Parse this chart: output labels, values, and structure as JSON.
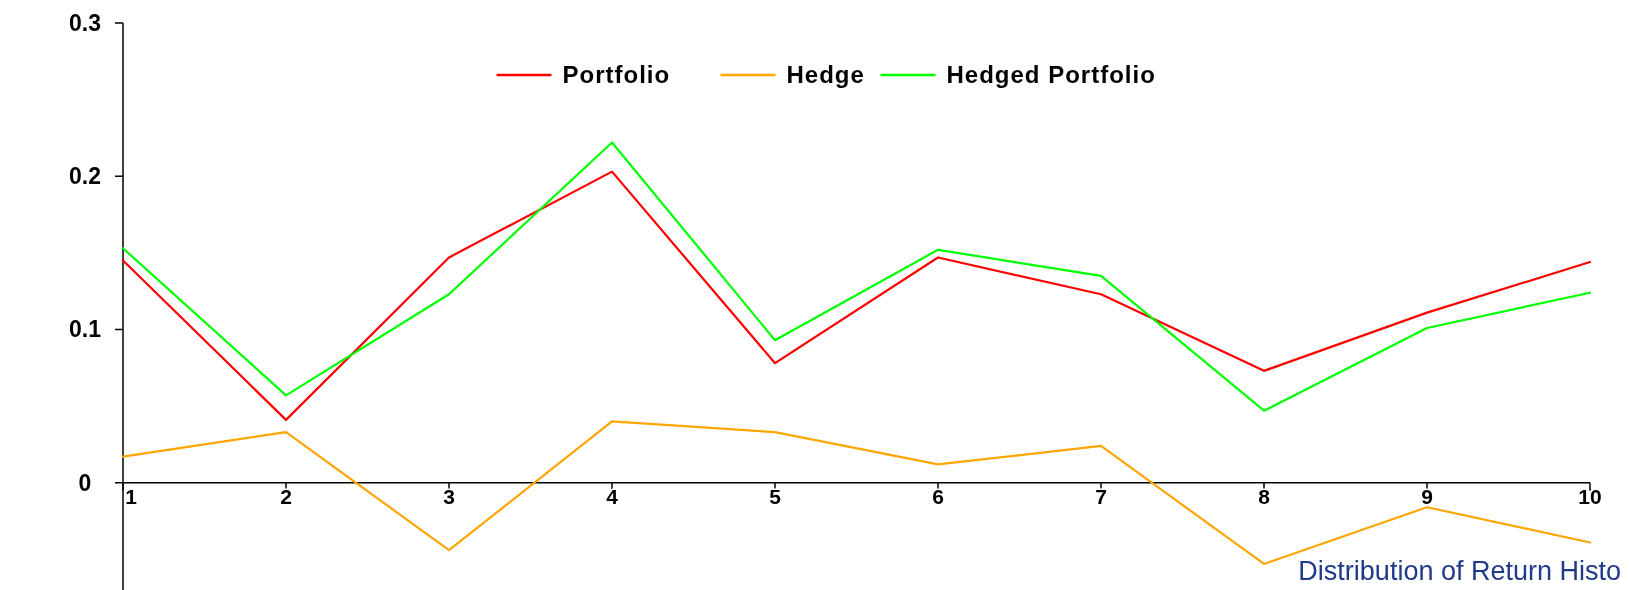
{
  "chart_data": {
    "type": "line",
    "categories": [
      "1",
      "2",
      "3",
      "4",
      "5",
      "6",
      "7",
      "8",
      "9",
      "10"
    ],
    "series": [
      {
        "name": "Portfolio",
        "color": "#ff0000",
        "values": [
          0.145,
          0.041,
          0.147,
          0.203,
          0.078,
          0.147,
          0.123,
          0.073,
          0.111,
          0.144
        ]
      },
      {
        "name": "Hedge",
        "color": "#ffa500",
        "values": [
          0.017,
          0.033,
          -0.044,
          0.04,
          0.033,
          0.012,
          0.024,
          -0.053,
          -0.016,
          -0.039
        ]
      },
      {
        "name": "Hedged Portfolio",
        "color": "#00ff00",
        "values": [
          0.153,
          0.057,
          0.123,
          0.222,
          0.093,
          0.152,
          0.135,
          0.047,
          0.101,
          0.124
        ]
      }
    ],
    "ylim": [
      -0.07,
      0.3
    ],
    "yticks": [
      0,
      0.1,
      0.2,
      0.3
    ],
    "grid": false,
    "legend": "top",
    "marker": "none",
    "annotations": [
      "Distribution of Return Histo"
    ]
  }
}
